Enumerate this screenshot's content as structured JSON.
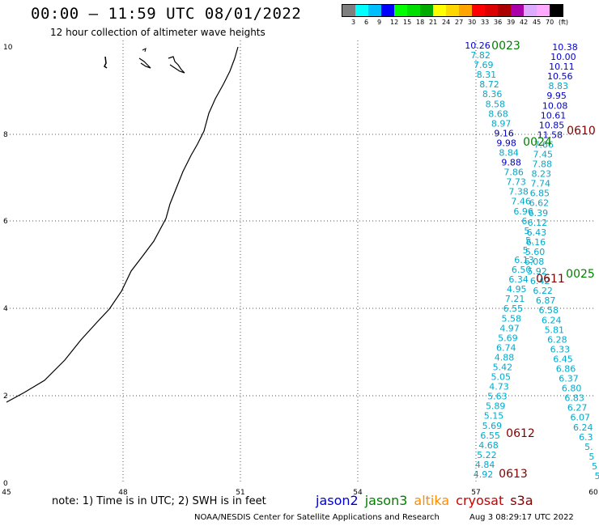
{
  "header": {
    "title": "00:00 – 11:59 UTC 08/01/2022",
    "subtitle": "12 hour collection of altimeter wave heights"
  },
  "scale": {
    "colors": [
      "#7f7f7f",
      "#00ffff",
      "#00bfff",
      "#0000ff",
      "#00ff00",
      "#00dd00",
      "#00aa00",
      "#ffff00",
      "#ffd700",
      "#ffa500",
      "#ff0000",
      "#dd0000",
      "#aa0000",
      "#aa00aa",
      "#ddaaff",
      "#ffaaff",
      "#000000"
    ],
    "labels": [
      "3",
      "6",
      "9",
      "12",
      "15",
      "18",
      "21",
      "24",
      "27",
      "30",
      "33",
      "36",
      "39",
      "42",
      "45",
      "70",
      "(ft)"
    ]
  },
  "axes": {
    "x_ticks": [
      "45",
      "48",
      "51",
      "54",
      "57",
      "60"
    ],
    "y_ticks": [
      "0",
      "2",
      "4",
      "6",
      "8",
      "10"
    ]
  },
  "track_labels": [
    {
      "text": "0023",
      "color": "#008000"
    },
    {
      "text": "0610",
      "color": "#800000"
    },
    {
      "text": "0024",
      "color": "#008000"
    },
    {
      "text": "0025",
      "color": "#008000"
    },
    {
      "text": "0611",
      "color": "#800000"
    },
    {
      "text": "0612",
      "color": "#800000"
    },
    {
      "text": "0613",
      "color": "#800000"
    }
  ],
  "swh_left": [
    "10.26",
    "7.82",
    "7.69",
    "8.31",
    "8.72",
    "8.36",
    "8.58",
    "8.68",
    "8.97",
    "9.16",
    "9.98",
    "8.84",
    "9.88",
    "7.86",
    "7.73",
    "7.38",
    "7.46",
    "6.96",
    "6.",
    "5.",
    "5.",
    "5.",
    "6.13",
    "6.50",
    "6.34",
    "4.95",
    "7.21",
    "6.55",
    "5.58",
    "4.97",
    "5.69",
    "6.74",
    "4.88",
    "5.42",
    "5.05",
    "4.73",
    "5.63",
    "5.89",
    "5.15",
    "5.69",
    "6.55",
    "4.68",
    "5.22",
    "4.84",
    "4.92"
  ],
  "swh_right": [
    "10.38",
    "10.00",
    "10.11",
    "10.56",
    "8.83",
    "9.95",
    "10.08",
    "10.61",
    "10.85",
    "11.58",
    "7.66",
    "7.45",
    "7.88",
    "8.23",
    "7.74",
    "6.85",
    "6.62",
    "6.39",
    "6.12",
    "6.43",
    "6.16",
    "5.60",
    "6.08",
    "5.92",
    "6.42",
    "6.22",
    "6.87",
    "6.58",
    "6.24",
    "5.81",
    "6.28",
    "6.33",
    "6.45",
    "6.86",
    "6.37",
    "6.80",
    "6.83",
    "6.27",
    "6.07",
    "6.24",
    "6.3",
    "5.",
    "5",
    "5",
    "5"
  ],
  "footer": {
    "note": "note: 1) Time is in UTC; 2) SWH is in feet",
    "missions": [
      {
        "name": "jason2",
        "color": "#0000cc"
      },
      {
        "name": "jason3",
        "color": "#008000"
      },
      {
        "name": "altika",
        "color": "#ff8c00"
      },
      {
        "name": "cryosat",
        "color": "#cc0000"
      },
      {
        "name": "s3a",
        "color": "#800000"
      }
    ],
    "credit": "NOAA/NESDIS Center for Satellite Applications and Research",
    "timestamp": "Aug  3 08:29:17 UTC 2022"
  }
}
